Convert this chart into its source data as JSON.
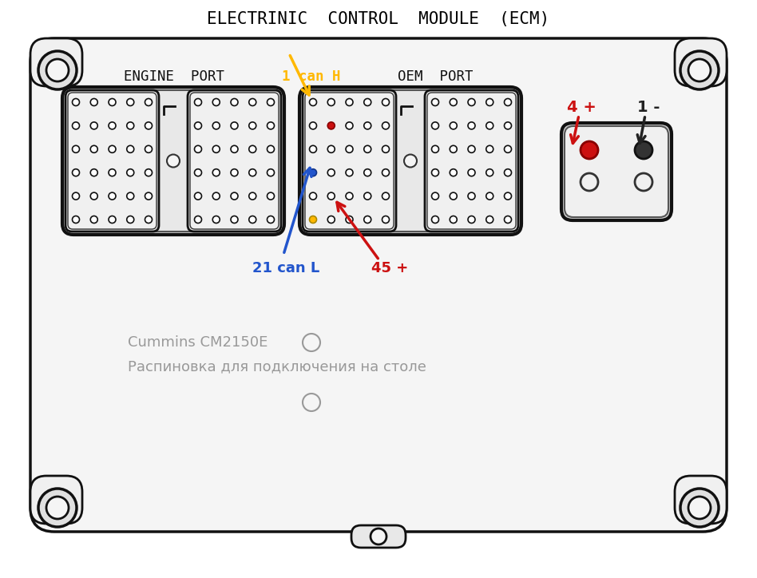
{
  "title": "ELECTRINIC  CONTROL  MODULE  (ECM)",
  "title_fontsize": 15,
  "title_color": "#000000",
  "bg_color": "#ffffff",
  "label_engine_port": "ENGINE  PORT",
  "label_oem_port": "OEM  PORT",
  "label_1can_h": "1 can H",
  "label_21can_l": "21 can L",
  "label_45plus": "45 +",
  "label_4plus": "4 +",
  "label_1minus": "1 -",
  "label_cummins": "Cummins CM2150E",
  "label_raspinovka": "Распиновка для подключения на столе",
  "color_yellow": "#FFB800",
  "color_blue": "#2255CC",
  "color_red": "#CC1111",
  "color_dark": "#222222",
  "color_gray_text": "#999999"
}
